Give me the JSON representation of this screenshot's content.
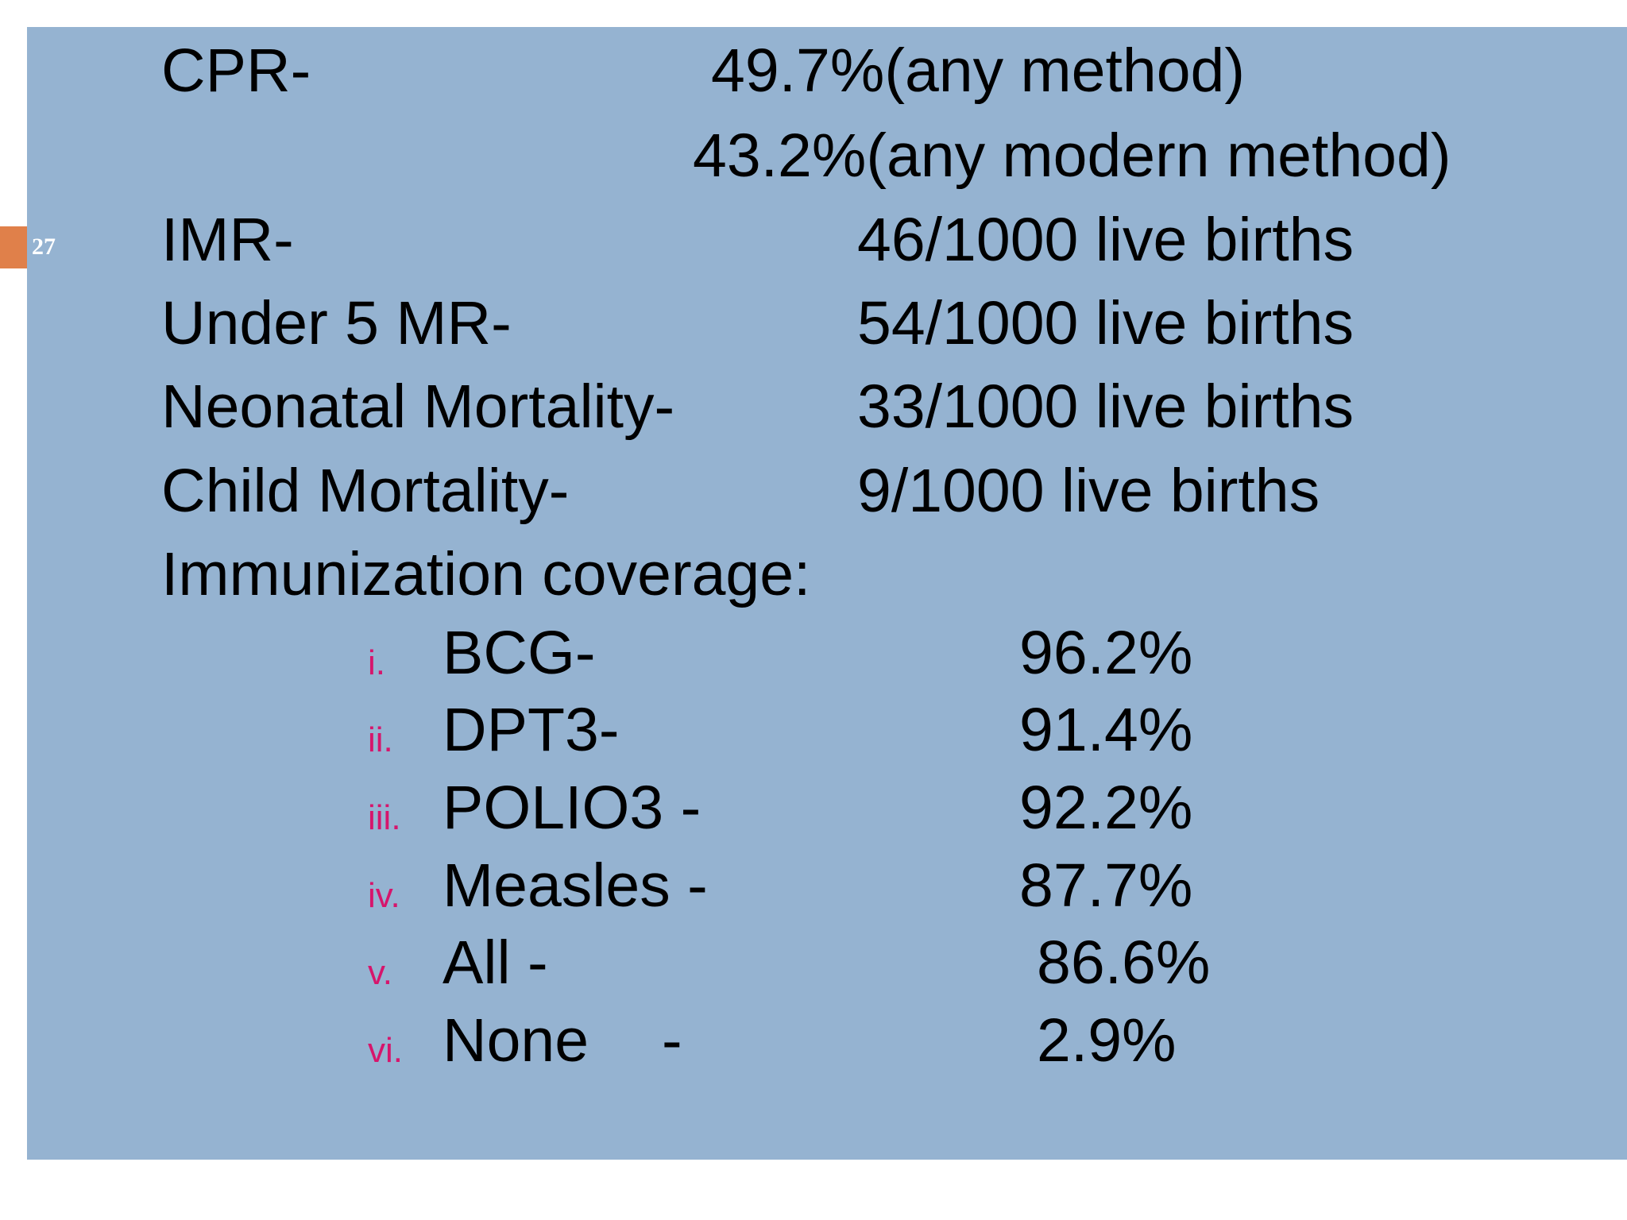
{
  "slide": {
    "number": "27"
  },
  "stats": [
    {
      "label": "CPR-",
      "value": "49.7%(any method)"
    },
    {
      "value": "43.2%(any modern method)"
    },
    {
      "label": "IMR-",
      "value": "46/1000 live births"
    },
    {
      "label": "Under 5 MR-",
      "value": "54/1000 live births"
    },
    {
      "label": "Neonatal Mortality-",
      "value": "33/1000 live births"
    },
    {
      "label": "Child Mortality-",
      "value": "9/1000 live births"
    }
  ],
  "immunization": {
    "heading": "Immunization coverage:",
    "items": [
      {
        "numeral": "i.",
        "label": "BCG-",
        "value": "96.2%"
      },
      {
        "numeral": "ii.",
        "label": "DPT3-",
        "value": "91.4%"
      },
      {
        "numeral": "iii.",
        "label": "POLIO3 -",
        "value": "92.2%"
      },
      {
        "numeral": "iv.",
        "label": "Measles -",
        "value": "87.7%"
      },
      {
        "numeral": "v.",
        "label": "All -",
        "value": "86.6%"
      },
      {
        "numeral": "vi.",
        "label": "None",
        "dash": "-",
        "value": "2.9%"
      }
    ]
  },
  "colors": {
    "background": "#95b3d1",
    "accent_tab": "#e0804a",
    "numeral": "#d6156c",
    "text": "#000000"
  }
}
